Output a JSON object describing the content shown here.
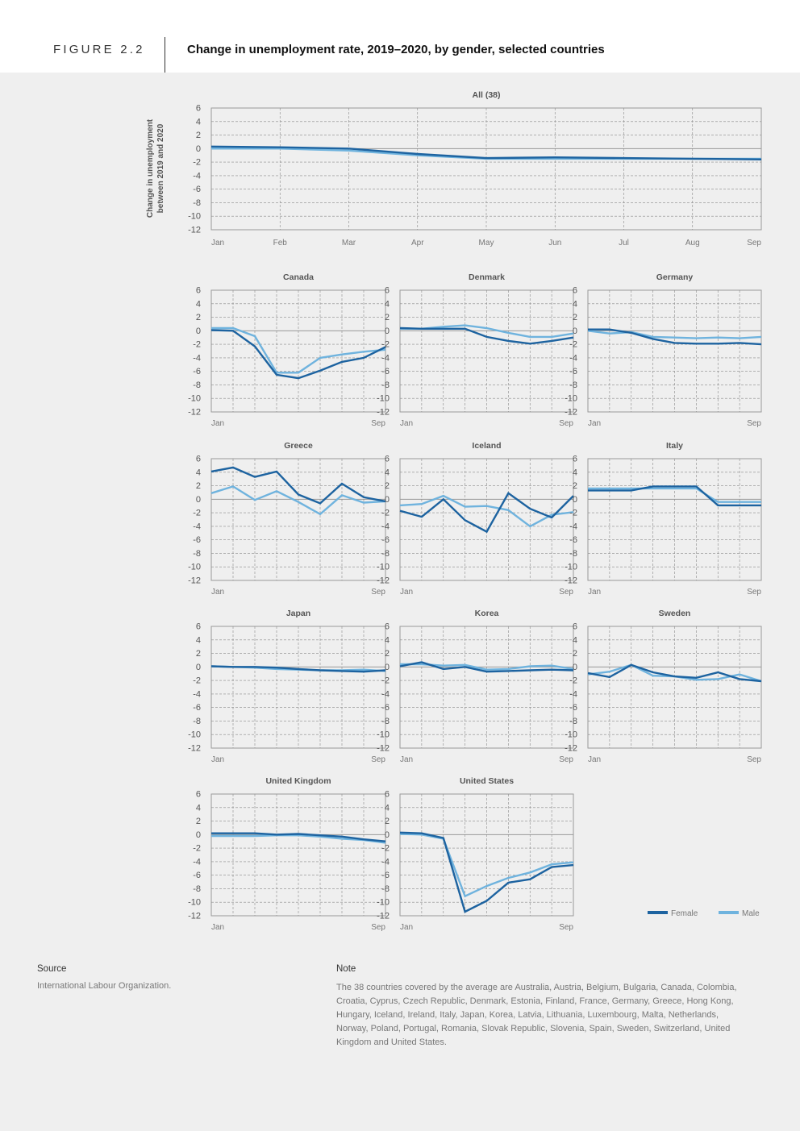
{
  "figure": {
    "label": "FIGURE 2.2",
    "title": "Change in unemployment rate, 2019–2020, by gender, selected countries"
  },
  "ylabel_main": [
    "Change in unemployment",
    "between 2019 and 2020"
  ],
  "legend": {
    "female": "Female",
    "male": "Male"
  },
  "colors": {
    "female": "#1d63a0",
    "male": "#6fb3de",
    "grid": "#8a8a8a",
    "zero": "#9a9a9a",
    "frame": "#9a9a9a"
  },
  "source": {
    "heading": "Source",
    "text": "International Labour Organization."
  },
  "note": {
    "heading": "Note",
    "text": "The 38 countries covered by the average are Australia, Austria, Belgium, Bulgaria, Canada, Colombia, Croatia, Cyprus, Czech Republic, Denmark, Estonia, Finland, France, Germany, Greece, Hong Kong, Hungary, Iceland, Ireland, Italy, Japan, Korea, Latvia, Lithuania, Luxembourg, Malta, Netherlands, Norway, Poland, Portugal, Romania, Slovak Republic, Slovenia, Spain, Sweden, Switzerland, United Kingdom and United States."
  },
  "chart_data": [
    {
      "type": "line",
      "title": "All (38)",
      "ylim": [
        -12,
        6
      ],
      "yticks": [
        6,
        4,
        2,
        0,
        -2,
        -4,
        -6,
        -8,
        -10,
        -12
      ],
      "x": [
        "Jan",
        "Feb",
        "Mar",
        "Apr",
        "May",
        "Jun",
        "Jul",
        "Aug",
        "Sep"
      ],
      "xtick_labels": [
        "Jan",
        "Feb",
        "Mar",
        "Apr",
        "May",
        "Jun",
        "Jul",
        "Aug",
        "Sep"
      ],
      "series": [
        {
          "name": "Female",
          "values": [
            0.3,
            0.2,
            0.0,
            -0.8,
            -1.4,
            -1.3,
            -1.4,
            -1.5,
            -1.6
          ]
        },
        {
          "name": "Male",
          "values": [
            0.0,
            0.0,
            -0.3,
            -1.0,
            -1.5,
            -1.5,
            -1.5,
            -1.5,
            -1.5
          ]
        }
      ]
    },
    {
      "type": "line",
      "title": "Canada",
      "ylim": [
        -12,
        6
      ],
      "yticks": [
        6,
        4,
        2,
        0,
        -2,
        -4,
        -6,
        -8,
        -10,
        -12
      ],
      "x": [
        "Jan",
        "Feb",
        "Mar",
        "Apr",
        "May",
        "Jun",
        "Jul",
        "Aug",
        "Sep"
      ],
      "xtick_labels": [
        "Jan",
        "Sep"
      ],
      "series": [
        {
          "name": "Female",
          "values": [
            0.1,
            0.0,
            -2.3,
            -6.5,
            -7.0,
            -5.9,
            -4.6,
            -4.0,
            -2.4
          ]
        },
        {
          "name": "Male",
          "values": [
            0.4,
            0.4,
            -0.8,
            -6.2,
            -6.2,
            -4.0,
            -3.5,
            -3.1,
            -2.8
          ]
        }
      ]
    },
    {
      "type": "line",
      "title": "Denmark",
      "ylim": [
        -12,
        6
      ],
      "yticks": [
        6,
        4,
        2,
        0,
        -2,
        -4,
        -6,
        -8,
        -10,
        -12
      ],
      "x": [
        "Jan",
        "Feb",
        "Mar",
        "Apr",
        "May",
        "Jun",
        "Jul",
        "Aug",
        "Sep"
      ],
      "xtick_labels": [
        "Jan",
        "Sep"
      ],
      "series": [
        {
          "name": "Female",
          "values": [
            0.4,
            0.3,
            0.3,
            0.3,
            -0.9,
            -1.5,
            -1.9,
            -1.5,
            -1.0
          ]
        },
        {
          "name": "Male",
          "values": [
            0.3,
            0.3,
            0.6,
            0.8,
            0.4,
            -0.3,
            -0.9,
            -0.9,
            -0.4
          ]
        }
      ]
    },
    {
      "type": "line",
      "title": "Germany",
      "ylim": [
        -12,
        6
      ],
      "yticks": [
        6,
        4,
        2,
        0,
        -2,
        -4,
        -6,
        -8,
        -10,
        -12
      ],
      "x": [
        "Jan",
        "Feb",
        "Mar",
        "Apr",
        "May",
        "Jun",
        "Jul",
        "Aug",
        "Sep"
      ],
      "xtick_labels": [
        "Jan",
        "Sep"
      ],
      "series": [
        {
          "name": "Female",
          "values": [
            0.2,
            0.2,
            -0.3,
            -1.2,
            -1.8,
            -1.9,
            -1.9,
            -1.8,
            -2.0
          ]
        },
        {
          "name": "Male",
          "values": [
            0.0,
            -0.4,
            -0.2,
            -0.9,
            -1.0,
            -1.1,
            -1.0,
            -1.1,
            -0.9
          ]
        }
      ]
    },
    {
      "type": "line",
      "title": "Greece",
      "ylim": [
        -12,
        6
      ],
      "yticks": [
        6,
        4,
        2,
        0,
        -2,
        -4,
        -6,
        -8,
        -10,
        -12
      ],
      "x": [
        "Jan",
        "Feb",
        "Mar",
        "Apr",
        "May",
        "Jun",
        "Jul",
        "Aug",
        "Sep"
      ],
      "xtick_labels": [
        "Jan",
        "Sep"
      ],
      "series": [
        {
          "name": "Female",
          "values": [
            4.1,
            4.7,
            3.3,
            4.1,
            0.7,
            -0.6,
            2.3,
            0.3,
            -0.3
          ]
        },
        {
          "name": "Male",
          "values": [
            0.9,
            1.9,
            -0.1,
            1.2,
            -0.4,
            -2.2,
            0.6,
            -0.5,
            -0.3
          ]
        }
      ]
    },
    {
      "type": "line",
      "title": "Iceland",
      "ylim": [
        -12,
        6
      ],
      "yticks": [
        6,
        4,
        2,
        0,
        -2,
        -4,
        -6,
        -8,
        -10,
        -12
      ],
      "x": [
        "Jan",
        "Feb",
        "Mar",
        "Apr",
        "May",
        "Jun",
        "Jul",
        "Aug",
        "Sep"
      ],
      "xtick_labels": [
        "Jan",
        "Sep"
      ],
      "series": [
        {
          "name": "Female",
          "values": [
            -1.7,
            -2.6,
            0.0,
            -3.1,
            -4.8,
            0.9,
            -1.4,
            -2.7,
            0.5
          ]
        },
        {
          "name": "Male",
          "values": [
            -0.9,
            -0.7,
            0.5,
            -1.1,
            -1.0,
            -1.6,
            -4.0,
            -2.3,
            -1.9
          ]
        }
      ]
    },
    {
      "type": "line",
      "title": "Italy",
      "ylim": [
        -12,
        6
      ],
      "yticks": [
        6,
        4,
        2,
        0,
        -2,
        -4,
        -6,
        -8,
        -10,
        -12
      ],
      "x": [
        "Jan",
        "Feb",
        "Mar",
        "Apr",
        "May",
        "Jun",
        "Jul",
        "Aug",
        "Sep"
      ],
      "xtick_labels": [
        "Jan",
        "Sep"
      ],
      "series": [
        {
          "name": "Female",
          "values": [
            1.3,
            1.3,
            1.3,
            1.9,
            1.9,
            1.9,
            -0.9,
            -0.9,
            -0.9
          ]
        },
        {
          "name": "Male",
          "values": [
            1.6,
            1.6,
            1.6,
            1.6,
            1.6,
            1.6,
            -0.4,
            -0.4,
            -0.4
          ]
        }
      ]
    },
    {
      "type": "line",
      "title": "Japan",
      "ylim": [
        -12,
        6
      ],
      "yticks": [
        6,
        4,
        2,
        0,
        -2,
        -4,
        -6,
        -8,
        -10,
        -12
      ],
      "x": [
        "Jan",
        "Feb",
        "Mar",
        "Apr",
        "May",
        "Jun",
        "Jul",
        "Aug",
        "Sep"
      ],
      "xtick_labels": [
        "Jan",
        "Sep"
      ],
      "series": [
        {
          "name": "Female",
          "values": [
            0.1,
            0.0,
            0.0,
            -0.1,
            -0.3,
            -0.5,
            -0.6,
            -0.7,
            -0.5
          ]
        },
        {
          "name": "Male",
          "values": [
            0.1,
            0.0,
            -0.1,
            -0.3,
            -0.4,
            -0.5,
            -0.5,
            -0.4,
            -0.6
          ]
        }
      ]
    },
    {
      "type": "line",
      "title": "Korea",
      "ylim": [
        -12,
        6
      ],
      "yticks": [
        6,
        4,
        2,
        0,
        -2,
        -4,
        -6,
        -8,
        -10,
        -12
      ],
      "x": [
        "Jan",
        "Feb",
        "Mar",
        "Apr",
        "May",
        "Jun",
        "Jul",
        "Aug",
        "Sep"
      ],
      "xtick_labels": [
        "Jan",
        "Sep"
      ],
      "series": [
        {
          "name": "Female",
          "values": [
            0.1,
            0.7,
            -0.3,
            0.0,
            -0.7,
            -0.6,
            -0.5,
            -0.4,
            -0.5
          ]
        },
        {
          "name": "Male",
          "values": [
            0.4,
            0.4,
            0.2,
            0.3,
            -0.4,
            -0.3,
            0.1,
            0.2,
            -0.3
          ]
        }
      ]
    },
    {
      "type": "line",
      "title": "Sweden",
      "ylim": [
        -12,
        6
      ],
      "yticks": [
        6,
        4,
        2,
        0,
        -2,
        -4,
        -6,
        -8,
        -10,
        -12
      ],
      "x": [
        "Jan",
        "Feb",
        "Mar",
        "Apr",
        "May",
        "Jun",
        "Jul",
        "Aug",
        "Sep"
      ],
      "xtick_labels": [
        "Jan",
        "Sep"
      ],
      "series": [
        {
          "name": "Female",
          "values": [
            -0.9,
            -1.5,
            0.3,
            -0.8,
            -1.4,
            -1.6,
            -0.8,
            -1.8,
            -2.1
          ]
        },
        {
          "name": "Male",
          "values": [
            -1.1,
            -0.7,
            0.3,
            -1.3,
            -1.4,
            -1.9,
            -1.8,
            -1.1,
            -2.1
          ]
        }
      ]
    },
    {
      "type": "line",
      "title": "United Kingdom",
      "ylim": [
        -12,
        6
      ],
      "yticks": [
        6,
        4,
        2,
        0,
        -2,
        -4,
        -6,
        -8,
        -10,
        -12
      ],
      "x": [
        "Jan",
        "Feb",
        "Mar",
        "Apr",
        "May",
        "Jun",
        "Jul",
        "Aug",
        "Sep"
      ],
      "xtick_labels": [
        "Jan",
        "Sep"
      ],
      "series": [
        {
          "name": "Female",
          "values": [
            0.2,
            0.2,
            0.2,
            0.0,
            0.1,
            -0.1,
            -0.3,
            -0.7,
            -1.0
          ]
        },
        {
          "name": "Male",
          "values": [
            -0.2,
            -0.2,
            -0.2,
            -0.1,
            -0.1,
            -0.3,
            -0.6,
            -0.8,
            -1.2
          ]
        }
      ]
    },
    {
      "type": "line",
      "title": "United States",
      "ylim": [
        -12,
        6
      ],
      "yticks": [
        6,
        4,
        2,
        0,
        -2,
        -4,
        -6,
        -8,
        -10,
        -12
      ],
      "x": [
        "Jan",
        "Feb",
        "Mar",
        "Apr",
        "May",
        "Jun",
        "Jul",
        "Aug",
        "Sep"
      ],
      "xtick_labels": [
        "Jan",
        "Sep"
      ],
      "series": [
        {
          "name": "Female",
          "values": [
            0.3,
            0.2,
            -0.5,
            -11.4,
            -9.8,
            -7.1,
            -6.6,
            -4.8,
            -4.5
          ]
        },
        {
          "name": "Male",
          "values": [
            0.1,
            0.0,
            -0.6,
            -9.1,
            -7.6,
            -6.4,
            -5.6,
            -4.4,
            -4.1
          ]
        }
      ]
    }
  ]
}
